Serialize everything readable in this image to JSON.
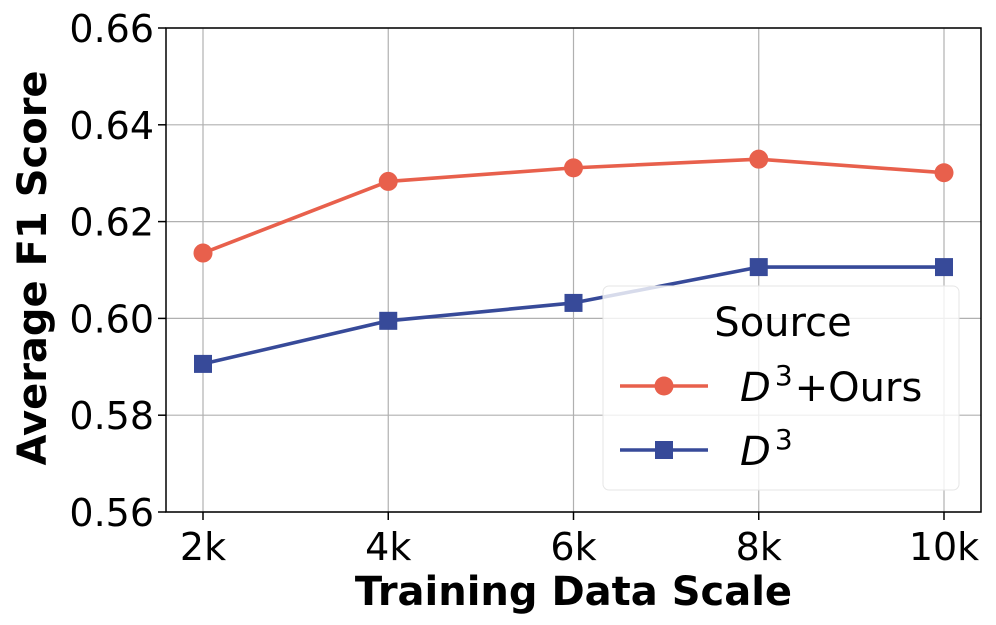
{
  "chart_data": {
    "type": "line",
    "xlabel": "Training Data Scale",
    "ylabel": "Average F1 Score",
    "categories": [
      "2k",
      "4k",
      "6k",
      "8k",
      "10k"
    ],
    "ylim": [
      0.56,
      0.66
    ],
    "yticks": [
      "0.56",
      "0.58",
      "0.60",
      "0.62",
      "0.64",
      "0.66"
    ],
    "grid": true,
    "legend": {
      "title": "Source",
      "placement": "lower-right"
    },
    "series": [
      {
        "name": "D3+Ours",
        "name_base": "D",
        "name_sup": "3",
        "name_suffix": "+Ours",
        "color": "#e8604c",
        "marker": "circle",
        "values": [
          0.6135,
          0.6283,
          0.6311,
          0.6329,
          0.6301
        ]
      },
      {
        "name": "D3",
        "name_base": "D",
        "name_sup": "3",
        "name_suffix": "",
        "color": "#374a99",
        "marker": "square",
        "values": [
          0.5906,
          0.5995,
          0.6032,
          0.6106,
          0.6106
        ]
      }
    ]
  }
}
